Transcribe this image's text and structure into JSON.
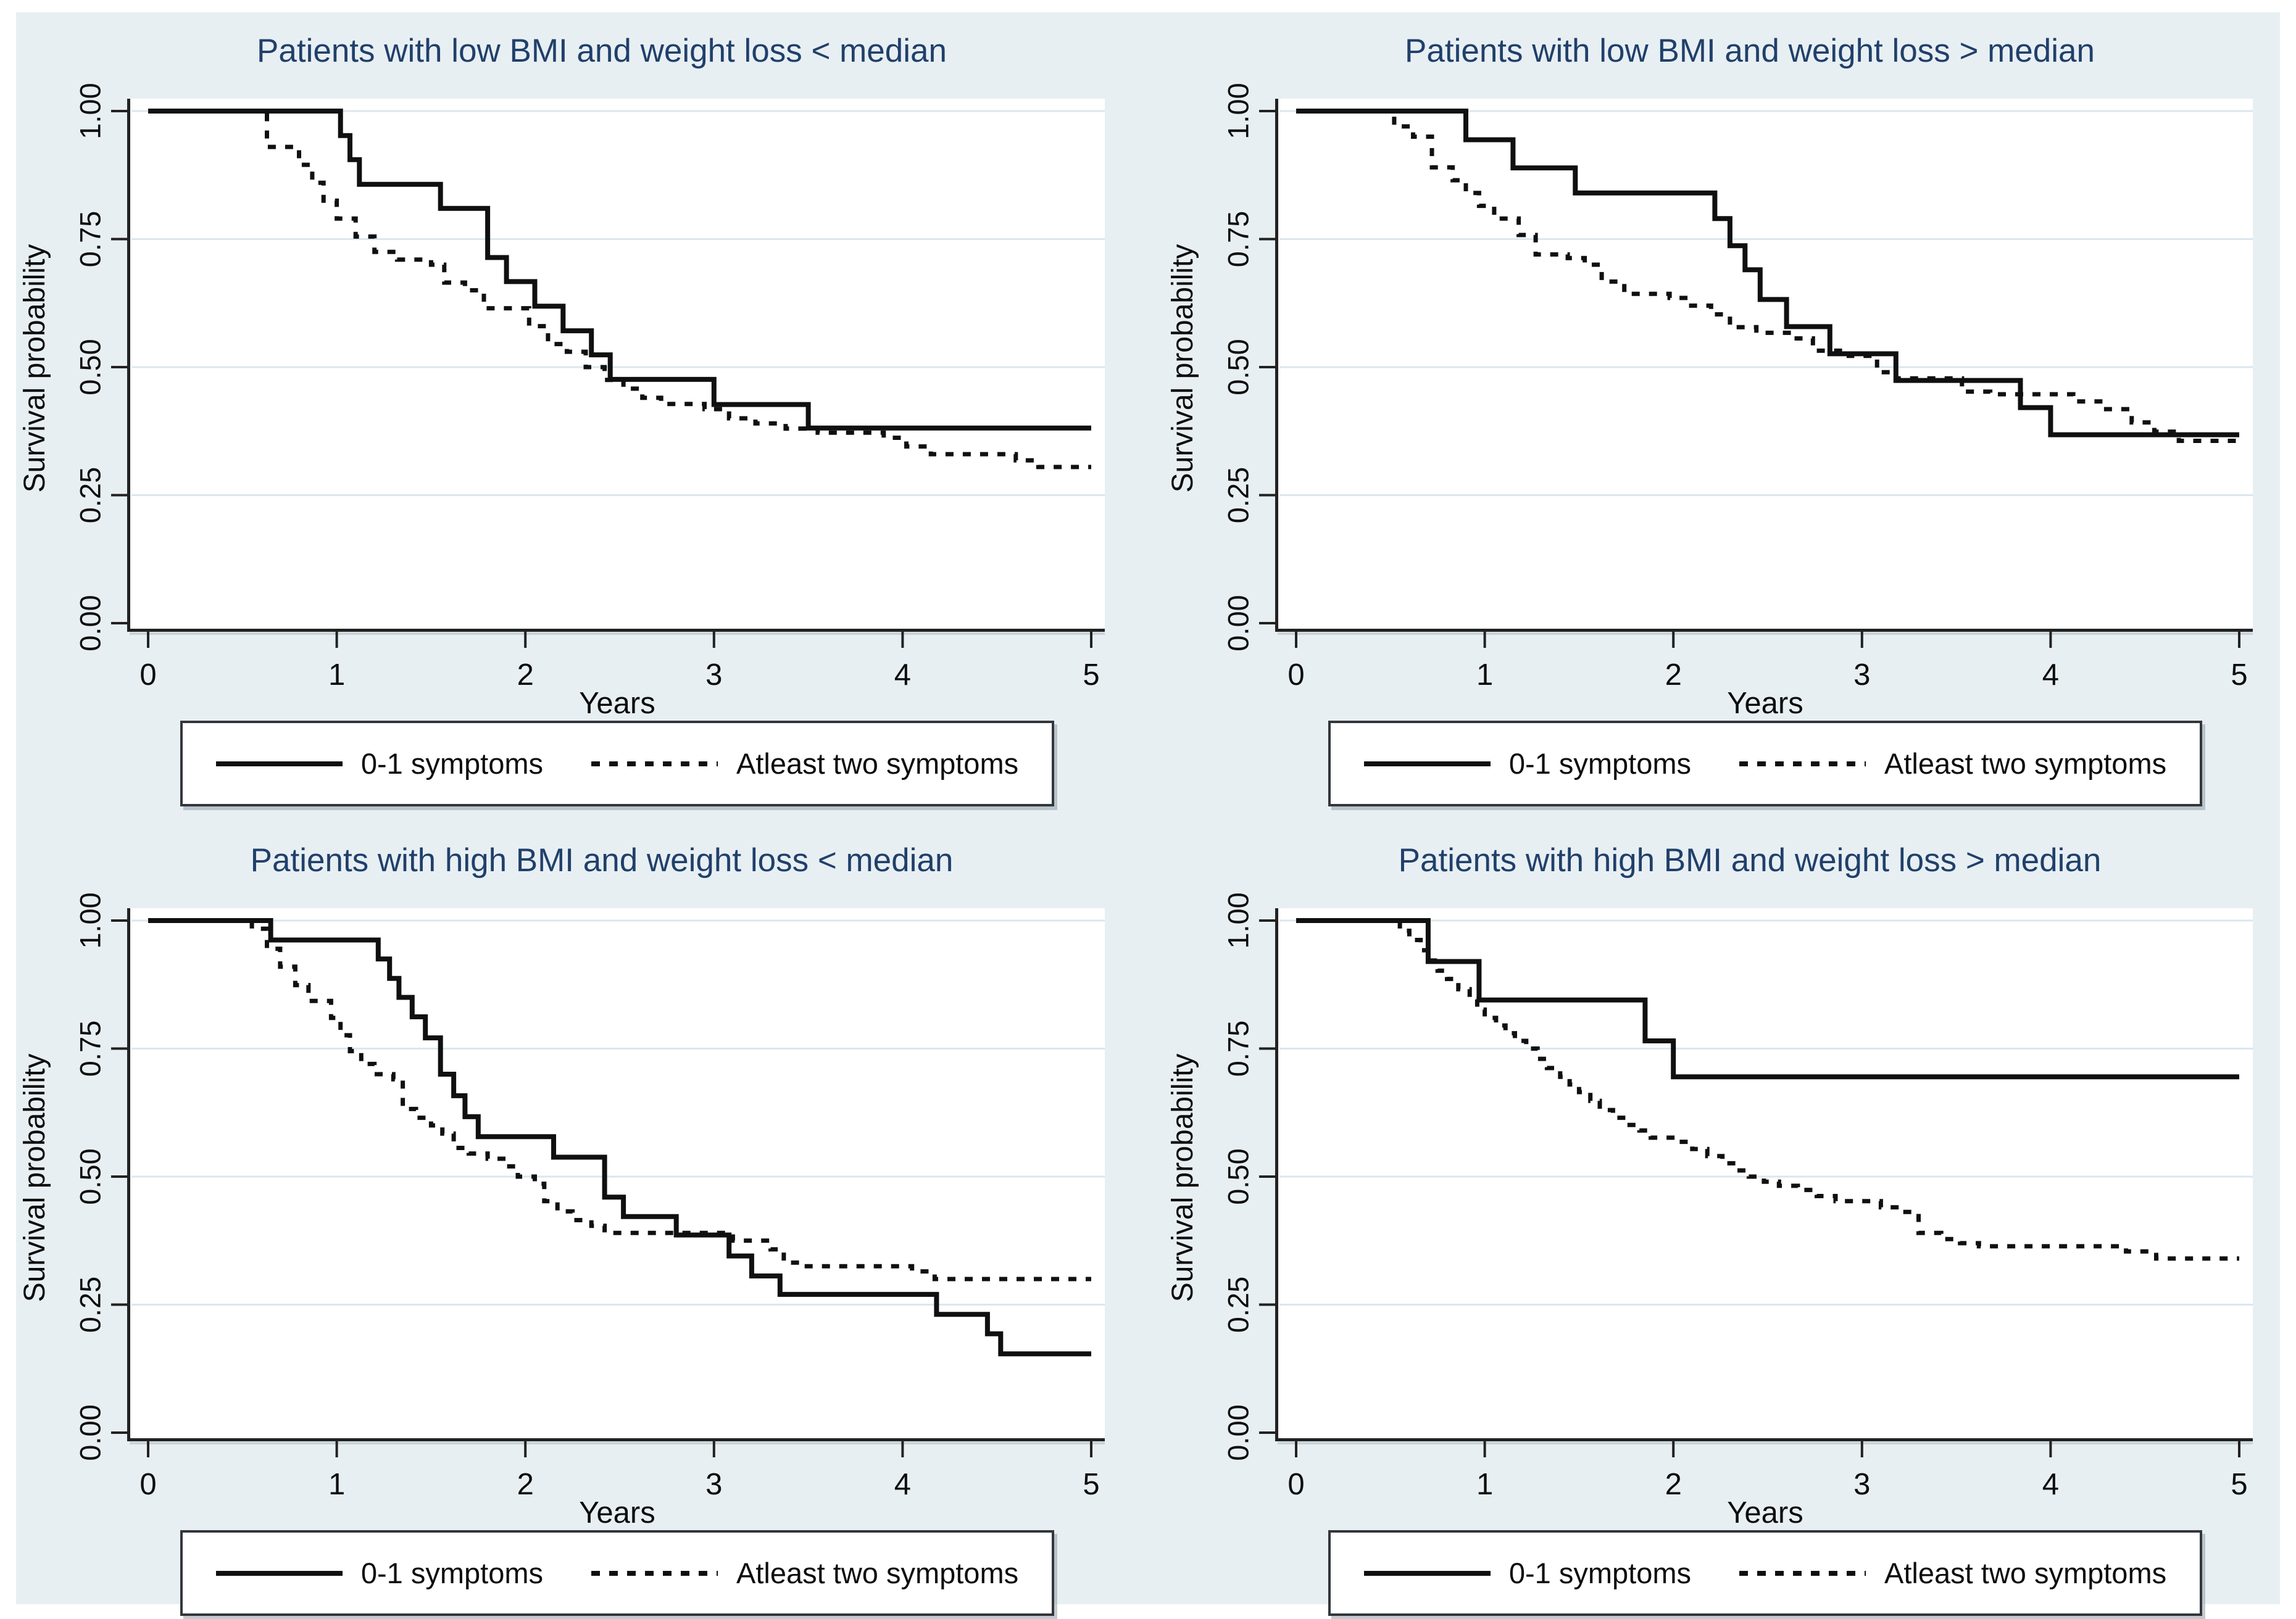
{
  "figure": {
    "background": "#e8eff3",
    "plot_bg": "#ffffff",
    "grid_color": "#dbe7ed",
    "axis_color": "#222222",
    "axis_shadow_color": "#b3c0c7",
    "title_color": "#20406a",
    "line_color": "#101010",
    "text_color": "#0d0d0d"
  },
  "axes": {
    "x_label": "Years",
    "y_label": "Survival probability",
    "x_ticks": [
      "0",
      "1",
      "2",
      "3",
      "4",
      "5"
    ],
    "y_ticks": [
      "0.00",
      "0.25",
      "0.50",
      "0.75",
      "1.00"
    ],
    "x_range": [
      0,
      5
    ],
    "y_range": [
      0,
      1
    ],
    "grid": "horizontal"
  },
  "legend": {
    "position": "bottom",
    "items": [
      {
        "label": "0-1 symptoms",
        "style": "solid"
      },
      {
        "label": "Atleast two symptoms",
        "style": "dotted"
      }
    ]
  },
  "chart_data": [
    {
      "type": "line",
      "subtype": "kaplan-meier-step",
      "title": "Patients with low BMI and weight loss < median",
      "xlabel": "Years",
      "ylabel": "Survival probability",
      "xlim": [
        0,
        5
      ],
      "ylim": [
        0,
        1
      ],
      "grid": "horizontal",
      "legend_position": "bottom",
      "series": [
        {
          "name": "0-1 symptoms",
          "style": "solid",
          "step": true,
          "points": [
            [
              0,
              1.0
            ],
            [
              1.02,
              0.952
            ],
            [
              1.07,
              0.905
            ],
            [
              1.12,
              0.857
            ],
            [
              1.55,
              0.81
            ],
            [
              1.8,
              0.714
            ],
            [
              1.9,
              0.667
            ],
            [
              2.05,
              0.619
            ],
            [
              2.2,
              0.571
            ],
            [
              2.35,
              0.524
            ],
            [
              2.45,
              0.476
            ],
            [
              3.0,
              0.427
            ],
            [
              3.5,
              0.381
            ],
            [
              5,
              0.381
            ]
          ]
        },
        {
          "name": "Atleast two symptoms",
          "style": "dotted",
          "step": true,
          "points": [
            [
              0,
              1.0
            ],
            [
              0.63,
              0.93
            ],
            [
              0.8,
              0.895
            ],
            [
              0.87,
              0.86
            ],
            [
              0.93,
              0.825
            ],
            [
              1.0,
              0.79
            ],
            [
              1.1,
              0.755
            ],
            [
              1.2,
              0.725
            ],
            [
              1.32,
              0.71
            ],
            [
              1.5,
              0.7
            ],
            [
              1.57,
              0.665
            ],
            [
              1.68,
              0.65
            ],
            [
              1.78,
              0.615
            ],
            [
              2.02,
              0.58
            ],
            [
              2.12,
              0.545
            ],
            [
              2.22,
              0.53
            ],
            [
              2.32,
              0.5
            ],
            [
              2.42,
              0.475
            ],
            [
              2.52,
              0.458
            ],
            [
              2.62,
              0.44
            ],
            [
              2.72,
              0.428
            ],
            [
              2.95,
              0.418
            ],
            [
              3.08,
              0.4
            ],
            [
              3.22,
              0.39
            ],
            [
              3.38,
              0.38
            ],
            [
              3.55,
              0.372
            ],
            [
              3.9,
              0.362
            ],
            [
              4.02,
              0.345
            ],
            [
              4.15,
              0.33
            ],
            [
              4.6,
              0.318
            ],
            [
              4.72,
              0.305
            ],
            [
              5,
              0.305
            ]
          ]
        }
      ]
    },
    {
      "type": "line",
      "subtype": "kaplan-meier-step",
      "title": "Patients with low BMI and weight loss > median",
      "xlabel": "Years",
      "ylabel": "Survival probability",
      "xlim": [
        0,
        5
      ],
      "ylim": [
        0,
        1
      ],
      "grid": "horizontal",
      "legend_position": "bottom",
      "series": [
        {
          "name": "0-1 symptoms",
          "style": "solid",
          "step": true,
          "points": [
            [
              0,
              1.0
            ],
            [
              0.9,
              0.944
            ],
            [
              1.15,
              0.889
            ],
            [
              1.48,
              0.84
            ],
            [
              2.22,
              0.79
            ],
            [
              2.3,
              0.737
            ],
            [
              2.38,
              0.69
            ],
            [
              2.46,
              0.632
            ],
            [
              2.6,
              0.579
            ],
            [
              2.83,
              0.526
            ],
            [
              3.18,
              0.474
            ],
            [
              3.84,
              0.421
            ],
            [
              4.0,
              0.368
            ],
            [
              5,
              0.368
            ]
          ]
        },
        {
          "name": "Atleast two symptoms",
          "style": "dotted",
          "step": true,
          "points": [
            [
              0,
              1.0
            ],
            [
              0.52,
              0.97
            ],
            [
              0.62,
              0.95
            ],
            [
              0.72,
              0.89
            ],
            [
              0.83,
              0.865
            ],
            [
              0.9,
              0.84
            ],
            [
              0.97,
              0.815
            ],
            [
              1.05,
              0.79
            ],
            [
              1.18,
              0.758
            ],
            [
              1.27,
              0.72
            ],
            [
              1.44,
              0.713
            ],
            [
              1.53,
              0.7
            ],
            [
              1.62,
              0.667
            ],
            [
              1.74,
              0.643
            ],
            [
              1.98,
              0.635
            ],
            [
              2.08,
              0.62
            ],
            [
              2.2,
              0.603
            ],
            [
              2.3,
              0.578
            ],
            [
              2.44,
              0.567
            ],
            [
              2.63,
              0.556
            ],
            [
              2.74,
              0.532
            ],
            [
              2.93,
              0.522
            ],
            [
              3.08,
              0.49
            ],
            [
              3.18,
              0.478
            ],
            [
              3.53,
              0.452
            ],
            [
              3.68,
              0.447
            ],
            [
              4.12,
              0.433
            ],
            [
              4.28,
              0.418
            ],
            [
              4.43,
              0.392
            ],
            [
              4.55,
              0.374
            ],
            [
              4.68,
              0.356
            ],
            [
              5,
              0.356
            ]
          ]
        }
      ]
    },
    {
      "type": "line",
      "subtype": "kaplan-meier-step",
      "title": "Patients with high BMI and weight loss < median",
      "xlabel": "Years",
      "ylabel": "Survival probability",
      "xlim": [
        0,
        5
      ],
      "ylim": [
        0,
        1
      ],
      "grid": "horizontal",
      "legend_position": "bottom",
      "series": [
        {
          "name": "0-1 symptoms",
          "style": "solid",
          "step": true,
          "points": [
            [
              0,
              1.0
            ],
            [
              0.65,
              0.962
            ],
            [
              1.22,
              0.925
            ],
            [
              1.28,
              0.887
            ],
            [
              1.33,
              0.85
            ],
            [
              1.4,
              0.812
            ],
            [
              1.47,
              0.771
            ],
            [
              1.55,
              0.7
            ],
            [
              1.62,
              0.658
            ],
            [
              1.68,
              0.617
            ],
            [
              1.75,
              0.578
            ],
            [
              2.15,
              0.538
            ],
            [
              2.42,
              0.46
            ],
            [
              2.52,
              0.422
            ],
            [
              2.8,
              0.386
            ],
            [
              3.08,
              0.345
            ],
            [
              3.2,
              0.306
            ],
            [
              3.35,
              0.27
            ],
            [
              4.18,
              0.231
            ],
            [
              4.45,
              0.193
            ],
            [
              4.52,
              0.154
            ],
            [
              5,
              0.154
            ]
          ]
        },
        {
          "name": "Atleast two symptoms",
          "style": "dotted",
          "step": true,
          "points": [
            [
              0,
              1.0
            ],
            [
              0.55,
              0.984
            ],
            [
              0.63,
              0.945
            ],
            [
              0.7,
              0.91
            ],
            [
              0.78,
              0.874
            ],
            [
              0.85,
              0.843
            ],
            [
              0.97,
              0.81
            ],
            [
              1.02,
              0.776
            ],
            [
              1.07,
              0.745
            ],
            [
              1.13,
              0.72
            ],
            [
              1.2,
              0.7
            ],
            [
              1.3,
              0.69
            ],
            [
              1.35,
              0.632
            ],
            [
              1.42,
              0.615
            ],
            [
              1.5,
              0.6
            ],
            [
              1.56,
              0.584
            ],
            [
              1.62,
              0.556
            ],
            [
              1.7,
              0.545
            ],
            [
              1.8,
              0.535
            ],
            [
              1.9,
              0.52
            ],
            [
              1.96,
              0.5
            ],
            [
              2.05,
              0.486
            ],
            [
              2.1,
              0.452
            ],
            [
              2.17,
              0.432
            ],
            [
              2.25,
              0.415
            ],
            [
              2.35,
              0.404
            ],
            [
              2.42,
              0.39
            ],
            [
              3.1,
              0.375
            ],
            [
              3.3,
              0.358
            ],
            [
              3.37,
              0.332
            ],
            [
              3.47,
              0.325
            ],
            [
              4.05,
              0.315
            ],
            [
              4.17,
              0.3
            ],
            [
              5,
              0.3
            ]
          ]
        }
      ]
    },
    {
      "type": "line",
      "subtype": "kaplan-meier-step",
      "title": "Patients with high BMI and weight loss > median",
      "xlabel": "Years",
      "ylabel": "Survival probability",
      "xlim": [
        0,
        5
      ],
      "ylim": [
        0,
        1
      ],
      "grid": "horizontal",
      "legend_position": "bottom",
      "series": [
        {
          "name": "0-1 symptoms",
          "style": "solid",
          "step": true,
          "points": [
            [
              0,
              1.0
            ],
            [
              0.7,
              0.92
            ],
            [
              0.97,
              0.845
            ],
            [
              1.85,
              0.765
            ],
            [
              2.0,
              0.695
            ],
            [
              5,
              0.695
            ]
          ]
        },
        {
          "name": "Atleast two symptoms",
          "style": "dotted",
          "step": true,
          "points": [
            [
              0,
              1.0
            ],
            [
              0.55,
              0.98
            ],
            [
              0.6,
              0.962
            ],
            [
              0.66,
              0.942
            ],
            [
              0.7,
              0.922
            ],
            [
              0.75,
              0.902
            ],
            [
              0.8,
              0.886
            ],
            [
              0.86,
              0.866
            ],
            [
              0.92,
              0.846
            ],
            [
              0.96,
              0.826
            ],
            [
              1.0,
              0.81
            ],
            [
              1.06,
              0.795
            ],
            [
              1.11,
              0.78
            ],
            [
              1.16,
              0.765
            ],
            [
              1.22,
              0.75
            ],
            [
              1.28,
              0.73
            ],
            [
              1.33,
              0.712
            ],
            [
              1.4,
              0.695
            ],
            [
              1.45,
              0.68
            ],
            [
              1.5,
              0.665
            ],
            [
              1.56,
              0.648
            ],
            [
              1.61,
              0.63
            ],
            [
              1.68,
              0.615
            ],
            [
              1.75,
              0.601
            ],
            [
              1.82,
              0.59
            ],
            [
              1.88,
              0.576
            ],
            [
              2.02,
              0.568
            ],
            [
              2.1,
              0.554
            ],
            [
              2.18,
              0.54
            ],
            [
              2.26,
              0.526
            ],
            [
              2.33,
              0.512
            ],
            [
              2.4,
              0.5
            ],
            [
              2.48,
              0.49
            ],
            [
              2.56,
              0.482
            ],
            [
              2.66,
              0.474
            ],
            [
              2.76,
              0.462
            ],
            [
              2.86,
              0.452
            ],
            [
              3.1,
              0.44
            ],
            [
              3.2,
              0.431
            ],
            [
              3.3,
              0.39
            ],
            [
              3.42,
              0.378
            ],
            [
              3.52,
              0.37
            ],
            [
              3.62,
              0.364
            ],
            [
              4.4,
              0.354
            ],
            [
              4.56,
              0.34
            ],
            [
              5,
              0.34
            ]
          ]
        }
      ]
    }
  ]
}
